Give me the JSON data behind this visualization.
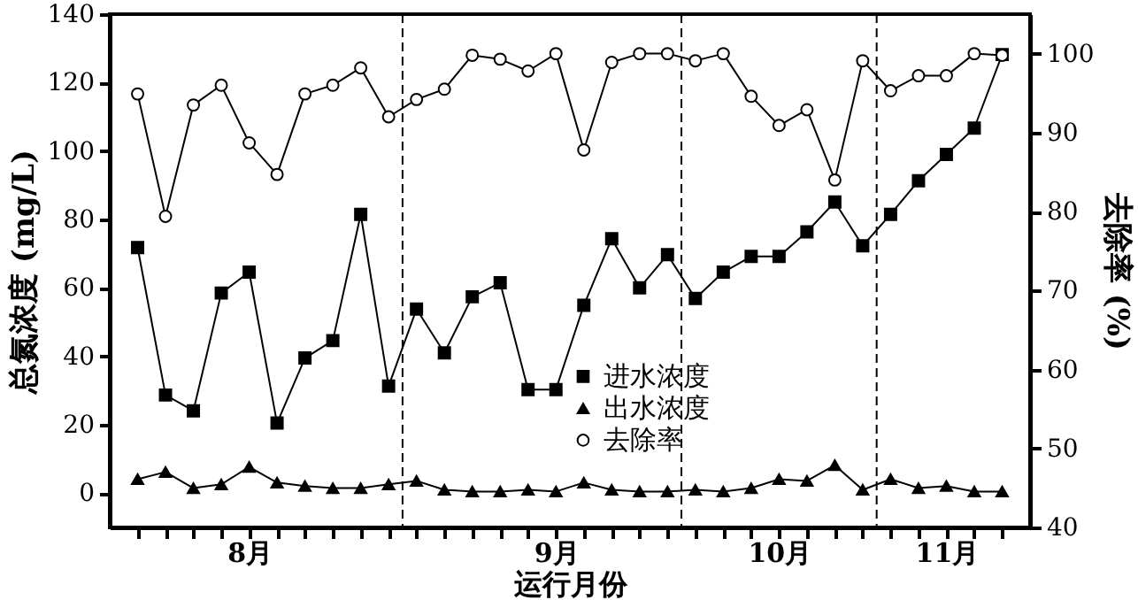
{
  "chart_data": {
    "type": "line",
    "xlabel": "运行月份",
    "ylabel": "总氮浓度 (mg/L)",
    "y2label": "去除率 (%)",
    "categories": [
      null,
      null,
      null,
      null,
      "8月",
      null,
      null,
      null,
      null,
      null,
      null,
      null,
      null,
      null,
      null,
      "9月",
      null,
      null,
      null,
      null,
      null,
      null,
      null,
      "10月",
      null,
      null,
      null,
      null,
      null,
      "11月",
      null,
      null
    ],
    "ylim": [
      -10,
      140
    ],
    "yticks": [
      0,
      20,
      40,
      60,
      80,
      100,
      120,
      140
    ],
    "y2lim": [
      40,
      105
    ],
    "y2ticks": [
      40,
      50,
      60,
      70,
      80,
      90,
      100
    ],
    "series": [
      {
        "name": "进水浓度",
        "color": "#000000",
        "marker": "square",
        "values": [
          71.8,
          28.7,
          24.1,
          58.5,
          64.6,
          20.5,
          39.5,
          44.6,
          81.5,
          31.3,
          53.8,
          41.0,
          57.4,
          61.5,
          30.3,
          30.3,
          54.9,
          74.4,
          60.0,
          69.7,
          56.9,
          64.6,
          69.2,
          69.2,
          76.4,
          85.1,
          72.3,
          81.5,
          91.3,
          99.0,
          106.7,
          128.2
        ]
      },
      {
        "name": "出水浓度",
        "color": "#000000",
        "marker": "triangle",
        "values": [
          4.1,
          6.2,
          1.5,
          2.6,
          7.7,
          3.1,
          2.1,
          1.5,
          1.5,
          2.6,
          3.6,
          1.0,
          0.5,
          0.5,
          1.0,
          0.5,
          3.1,
          1.0,
          0.5,
          0.5,
          1.0,
          0.5,
          1.5,
          4.1,
          3.6,
          8.2,
          1.0,
          4.1,
          1.5,
          2.1,
          0.5,
          0.5
        ]
      },
      {
        "name": "去除率",
        "color": "#000000",
        "marker": "circle",
        "axis": "y2",
        "values": [
          94.9,
          79.4,
          93.5,
          96.0,
          88.7,
          84.7,
          94.9,
          96.0,
          98.2,
          92.0,
          94.2,
          95.5,
          99.8,
          99.3,
          97.8,
          100,
          87.8,
          98.9,
          100,
          100,
          99.1,
          100,
          94.6,
          90.9,
          92.9,
          84.0,
          99.1,
          95.3,
          97.2,
          97.2,
          100,
          99.8
        ]
      }
    ],
    "legend": "bottom",
    "grid": false,
    "line_style": "solid"
  }
}
